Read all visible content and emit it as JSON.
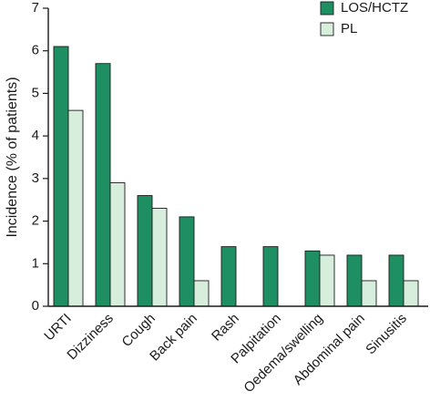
{
  "chart_data": {
    "type": "bar",
    "ylabel": "Incidence (% of patients)",
    "xlabel": "",
    "ylim": [
      0,
      7
    ],
    "yticks": [
      0,
      1,
      2,
      3,
      4,
      5,
      6,
      7
    ],
    "grid": false,
    "legend_position": "top-right",
    "categories": [
      "URTI",
      "Dizziness",
      "Cough",
      "Back pain",
      "Rash",
      "Palpitation",
      "Oedema/swelling",
      "Abdominal pain",
      "Sinusitis"
    ],
    "series": [
      {
        "name": "LOS/HCTZ",
        "color": "#1e8e63",
        "values": [
          6.1,
          5.7,
          2.6,
          2.1,
          1.4,
          1.4,
          1.3,
          1.2,
          1.2
        ]
      },
      {
        "name": "PL",
        "color": "#d8eedd",
        "values": [
          4.6,
          2.9,
          2.3,
          0.6,
          0,
          0,
          1.2,
          0.6,
          0.6
        ]
      }
    ]
  }
}
